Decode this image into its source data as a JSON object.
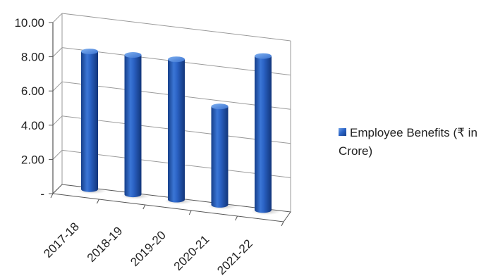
{
  "chart_data": {
    "type": "bar",
    "style": "3d-cylinder",
    "categories": [
      "2017-18",
      "2018-19",
      "2019-20",
      "2020-21",
      "2021-22"
    ],
    "series": [
      {
        "name": "Employee Benefits (₹ in Crore)",
        "values": [
          8.05,
          8.15,
          8.2,
          5.75,
          9.0
        ]
      }
    ],
    "y_tick_labels": [
      "-",
      "2.00",
      "4.00",
      "6.00",
      "8.00",
      "10.00"
    ],
    "ylim": [
      0,
      10
    ],
    "y_step": 2,
    "grid": true,
    "legend_position": "right",
    "colors": {
      "bar_dark": "#163f8a",
      "bar_mid": "#2a62c4",
      "bar_light": "#6fa0e8",
      "grid": "#9a9a9a"
    }
  },
  "legend": {
    "label": "Employee Benefits (₹ in Crore)"
  }
}
